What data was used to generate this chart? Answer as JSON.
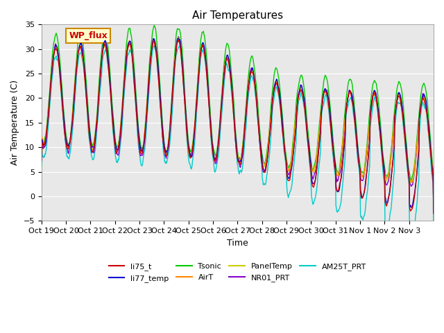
{
  "title": "Air Temperatures",
  "xlabel": "Time",
  "ylabel": "Air Temperature (C)",
  "ylim": [
    -5,
    35
  ],
  "bg_color": "#e8e8e8",
  "series_colors": {
    "li75_t": "#cc0000",
    "li77_temp": "#0000cc",
    "Tsonic": "#00cc00",
    "AirT": "#ff8800",
    "PanelTemp": "#cccc00",
    "NR01_PRT": "#8800cc",
    "AM25T_PRT": "#00cccc"
  },
  "annotation_label": "WP_flux",
  "annotation_bg": "#ffffcc",
  "annotation_border": "#cc8800",
  "annotation_text_color": "#cc0000",
  "xtick_labels": [
    "Oct 19",
    "Oct 20",
    "Oct 21",
    "Oct 22",
    "Oct 23",
    "Oct 24",
    "Oct 25",
    "Oct 26",
    "Oct 27",
    "Oct 28",
    "Oct 29",
    "Oct 30",
    "Oct 31",
    "Nov 1",
    "Nov 2",
    "Nov 3"
  ],
  "tick_fontsize": 8,
  "legend_fontsize": 8
}
